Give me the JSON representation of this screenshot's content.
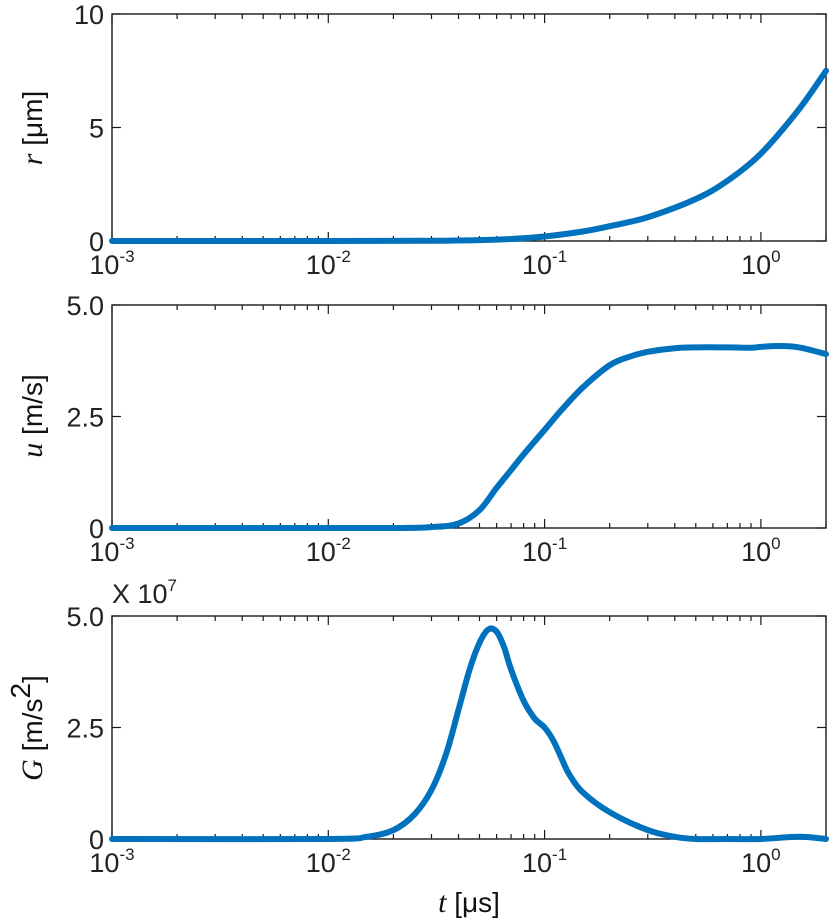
{
  "chart_data": [
    {
      "type": "line",
      "xscale": "log",
      "xlim": [
        0.001,
        2
      ],
      "ylim": [
        0,
        10
      ],
      "xticks": [
        {
          "value": 0.001,
          "base": "10",
          "exp": "-3"
        },
        {
          "value": 0.01,
          "base": "10",
          "exp": "-2"
        },
        {
          "value": 0.1,
          "base": "10",
          "exp": "-1"
        },
        {
          "value": 1,
          "base": "10",
          "exp": "0"
        }
      ],
      "yticks": [
        {
          "value": 0,
          "label": "0"
        },
        {
          "value": 5,
          "label": "5"
        },
        {
          "value": 10,
          "label": "10"
        }
      ],
      "ylabel_var": "r",
      "ylabel_unit": " [μm]",
      "ylabel_sup": "",
      "ylabel_tail": "",
      "xlabel_var": "",
      "xlabel_unit": "",
      "multiplier": "",
      "color": "#0072BD",
      "series": [
        {
          "x": [
            0.001,
            0.01,
            0.03,
            0.05,
            0.07,
            0.1,
            0.15,
            0.2,
            0.3,
            0.5,
            0.7,
            1,
            1.5,
            2
          ],
          "y": [
            0,
            0,
            0.01,
            0.04,
            0.09,
            0.2,
            0.42,
            0.65,
            1.05,
            1.85,
            2.65,
            3.85,
            5.8,
            7.5
          ]
        }
      ]
    },
    {
      "type": "line",
      "xscale": "log",
      "xlim": [
        0.001,
        2
      ],
      "ylim": [
        0,
        5
      ],
      "xticks": [
        {
          "value": 0.001,
          "base": "10",
          "exp": "-3"
        },
        {
          "value": 0.01,
          "base": "10",
          "exp": "-2"
        },
        {
          "value": 0.1,
          "base": "10",
          "exp": "-1"
        },
        {
          "value": 1,
          "base": "10",
          "exp": "0"
        }
      ],
      "yticks": [
        {
          "value": 0,
          "label": "0"
        },
        {
          "value": 2.5,
          "label": "2.5"
        },
        {
          "value": 5,
          "label": "5.0"
        }
      ],
      "ylabel_var": "u",
      "ylabel_unit": " [m/s]",
      "ylabel_sup": "",
      "ylabel_tail": "",
      "xlabel_var": "",
      "xlabel_unit": "",
      "multiplier": "",
      "color": "#0072BD",
      "series": [
        {
          "x": [
            0.001,
            0.01,
            0.02,
            0.03,
            0.04,
            0.05,
            0.06,
            0.07,
            0.08,
            0.1,
            0.12,
            0.15,
            0.2,
            0.25,
            0.3,
            0.4,
            0.5,
            0.7,
            0.9,
            1.0,
            1.2,
            1.5,
            2.0
          ],
          "y": [
            0,
            0,
            0,
            0.02,
            0.1,
            0.4,
            0.9,
            1.3,
            1.65,
            2.2,
            2.65,
            3.15,
            3.65,
            3.85,
            3.95,
            4.03,
            4.05,
            4.05,
            4.04,
            4.06,
            4.08,
            4.05,
            3.9
          ]
        }
      ]
    },
    {
      "type": "line",
      "xscale": "log",
      "xlim": [
        0.001,
        2
      ],
      "ylim": [
        0,
        5
      ],
      "xticks": [
        {
          "value": 0.001,
          "base": "10",
          "exp": "-3"
        },
        {
          "value": 0.01,
          "base": "10",
          "exp": "-2"
        },
        {
          "value": 0.1,
          "base": "10",
          "exp": "-1"
        },
        {
          "value": 1,
          "base": "10",
          "exp": "0"
        }
      ],
      "yticks": [
        {
          "value": 0,
          "label": "0"
        },
        {
          "value": 2.5,
          "label": "2.5"
        },
        {
          "value": 5,
          "label": "5.0"
        }
      ],
      "ylabel_var": "G",
      "ylabel_unit": " [m/s",
      "ylabel_sup": "2",
      "ylabel_tail": "]",
      "xlabel_var": "t",
      "xlabel_unit": " [μs]",
      "multiplier": "X 10",
      "multiplier_exp": "7",
      "color": "#0072BD",
      "series": [
        {
          "x": [
            0.001,
            0.01,
            0.015,
            0.02,
            0.025,
            0.03,
            0.035,
            0.04,
            0.045,
            0.05,
            0.055,
            0.06,
            0.065,
            0.07,
            0.08,
            0.09,
            0.1,
            0.11,
            0.12,
            0.13,
            0.15,
            0.2,
            0.3,
            0.4,
            0.5,
            0.7,
            1.0,
            1.5,
            2.0
          ],
          "y": [
            0,
            0,
            0.05,
            0.2,
            0.55,
            1.1,
            1.9,
            2.9,
            3.8,
            4.4,
            4.7,
            4.65,
            4.3,
            3.8,
            3.1,
            2.7,
            2.5,
            2.2,
            1.8,
            1.45,
            1.05,
            0.6,
            0.2,
            0.05,
            0,
            0,
            0,
            0.05,
            0
          ]
        }
      ]
    }
  ]
}
